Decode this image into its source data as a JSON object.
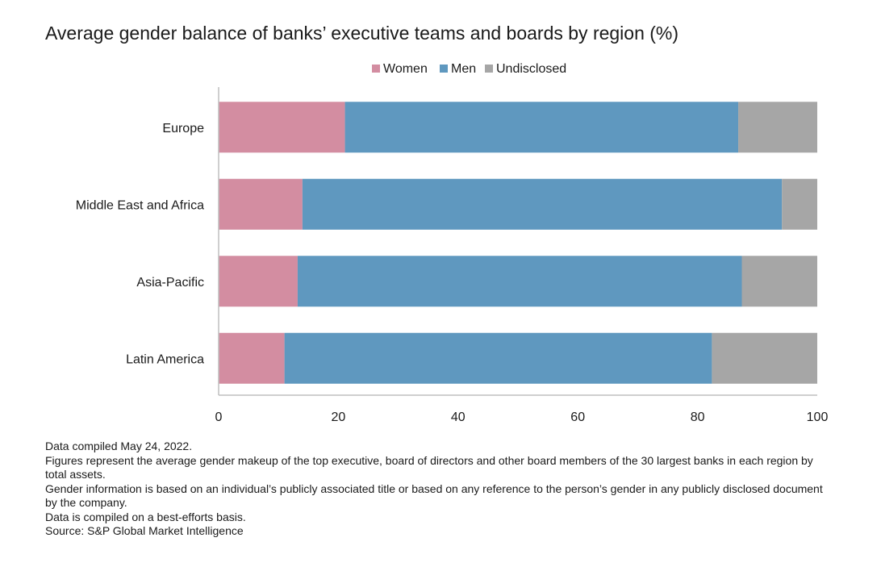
{
  "chart_data": {
    "type": "bar",
    "orientation": "horizontal",
    "stacked": true,
    "title": "Average gender balance of banks’ executive teams and boards by region (%)",
    "categories": [
      "Europe",
      "Middle East and Africa",
      "Asia-Pacific",
      "Latin America"
    ],
    "series": [
      {
        "name": "Women",
        "color": "#d38da1",
        "values": [
          21.1,
          14.0,
          13.2,
          11.0
        ]
      },
      {
        "name": "Men",
        "color": "#5f98bf",
        "values": [
          65.7,
          80.1,
          74.2,
          71.4
        ]
      },
      {
        "name": "Undisclosed",
        "color": "#a6a6a6",
        "values": [
          13.2,
          5.9,
          12.6,
          17.6
        ]
      }
    ],
    "xlim": [
      0,
      100
    ],
    "xticks": [
      "0",
      "20",
      "40",
      "60",
      "80",
      "100"
    ],
    "xlabel": "",
    "ylabel": "",
    "legend": "top-center",
    "grid": false
  },
  "notes": [
    "Data compiled May 24, 2022.",
    "Figures represent the average gender makeup of the top executive, board of directors and other board members of the 30 largest banks in each region by total assets.",
    "Gender information is based on an individual’s publicly associated title or based on any reference to the person’s gender in any publicly disclosed document by the company.",
    "Data is compiled on a best-efforts basis.",
    "Source: S&P Global Market Intelligence"
  ]
}
